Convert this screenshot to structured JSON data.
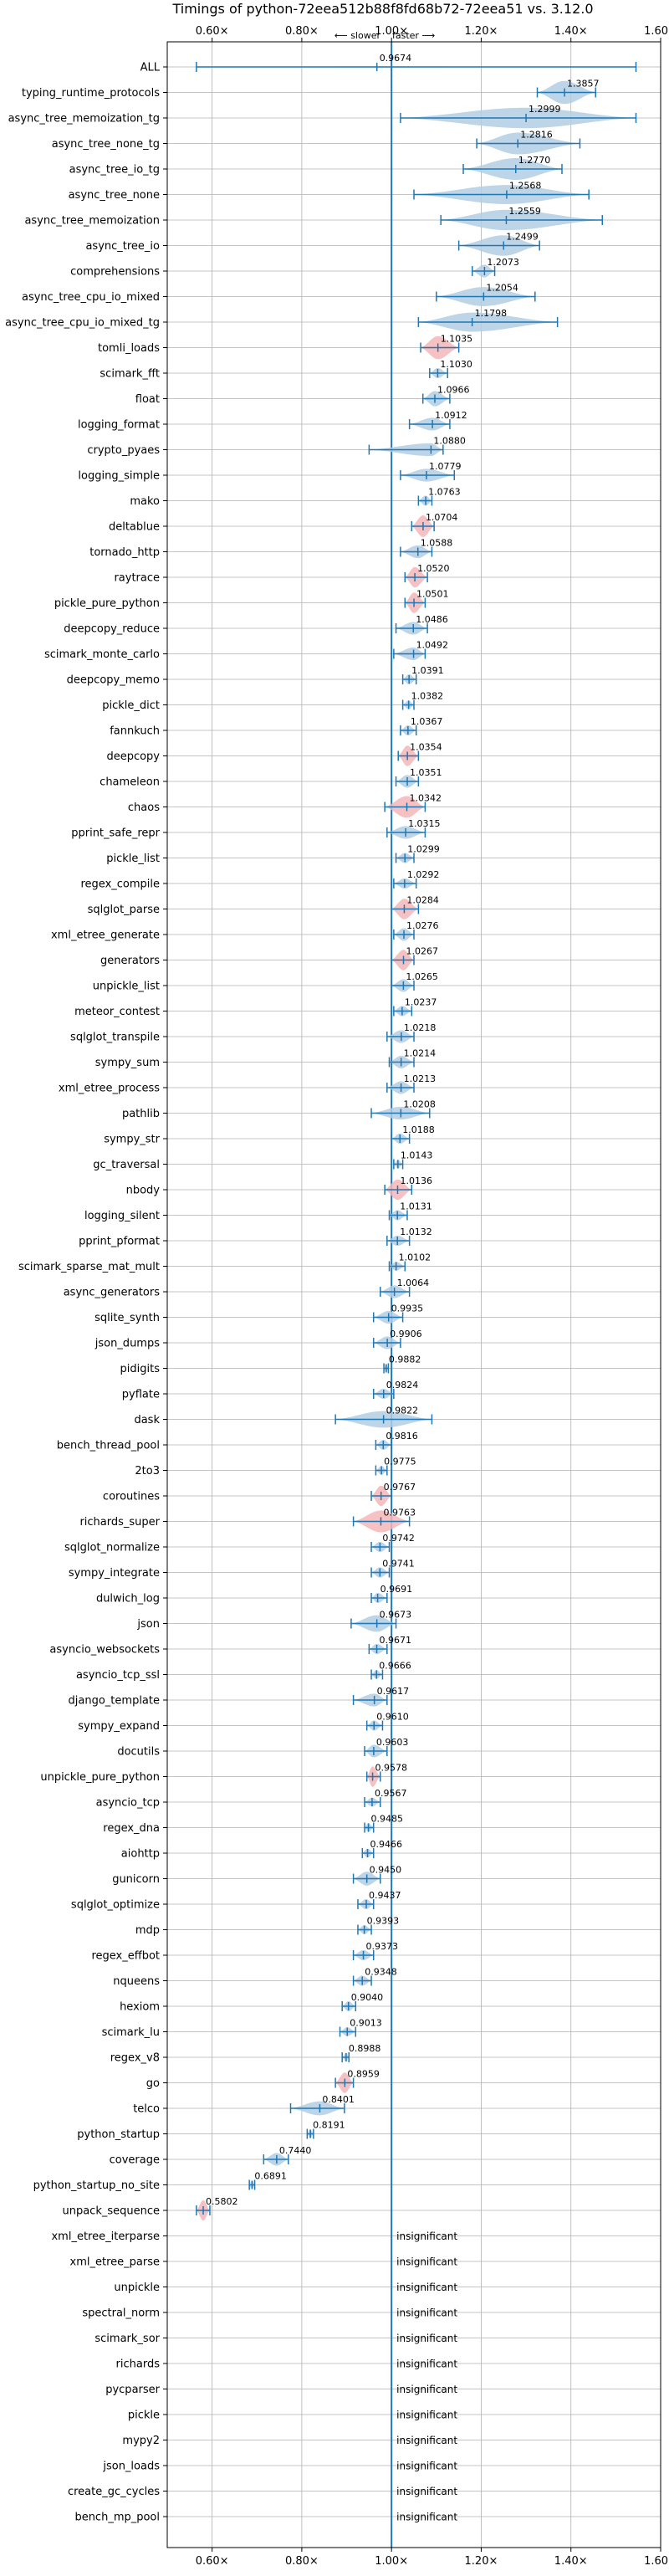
{
  "chart_data": {
    "type": "violin",
    "title": "Timings of python-72eea512b88f8fd68b72-72eea51 vs. 3.12.0",
    "direction_labels": {
      "slower": "⟵ slower",
      "faster": "faster ⟶"
    },
    "xlim": [
      0.5,
      1.6
    ],
    "x_ticks": [
      0.6,
      0.8,
      1.0,
      1.2,
      1.4,
      1.6
    ],
    "x_tick_labels": [
      "0.60×",
      "0.80×",
      "1.00×",
      "1.20×",
      "1.40×",
      "1.60×"
    ],
    "reference_line": 1.0,
    "grid": true,
    "colors": {
      "violin": "#b3cde3",
      "violin_highlight": "#f4b6b9",
      "line": "#1f77b4"
    },
    "insignificant_label": "insignificant",
    "benchmarks": [
      {
        "name": "ALL",
        "value": 0.9674,
        "label": "0.9674",
        "min": 0.565,
        "max": 1.545,
        "w": 0.045
      },
      {
        "name": "typing_runtime_protocols",
        "value": 1.3857,
        "label": "1.3857",
        "min": 1.325,
        "max": 1.455,
        "w": 0.9
      },
      {
        "name": "async_tree_memoization_tg",
        "value": 1.2999,
        "label": "1.2999",
        "min": 1.02,
        "max": 1.545,
        "w": 0.8
      },
      {
        "name": "async_tree_none_tg",
        "value": 1.2816,
        "label": "1.2816",
        "min": 1.19,
        "max": 1.42,
        "w": 0.85
      },
      {
        "name": "async_tree_io_tg",
        "value": 1.277,
        "label": "1.2770",
        "min": 1.16,
        "max": 1.38,
        "w": 0.85
      },
      {
        "name": "async_tree_none",
        "value": 1.2568,
        "label": "1.2568",
        "min": 1.05,
        "max": 1.44,
        "w": 0.75
      },
      {
        "name": "async_tree_memoization",
        "value": 1.2559,
        "label": "1.2559",
        "min": 1.11,
        "max": 1.47,
        "w": 0.8
      },
      {
        "name": "async_tree_io",
        "value": 1.2499,
        "label": "1.2499",
        "min": 1.15,
        "max": 1.33,
        "w": 0.8
      },
      {
        "name": "comprehensions",
        "value": 1.2073,
        "label": "1.2073",
        "min": 1.18,
        "max": 1.23,
        "w": 0.5
      },
      {
        "name": "async_tree_cpu_io_mixed",
        "value": 1.2054,
        "label": "1.2054",
        "min": 1.1,
        "max": 1.32,
        "w": 0.75
      },
      {
        "name": "async_tree_cpu_io_mixed_tg",
        "value": 1.1798,
        "label": "1.1798",
        "min": 1.06,
        "max": 1.37,
        "w": 0.75
      },
      {
        "name": "tomli_loads",
        "value": 1.1035,
        "label": "1.1035",
        "min": 1.065,
        "max": 1.15,
        "w": 0.9,
        "highlight": true
      },
      {
        "name": "scimark_fft",
        "value": 1.103,
        "label": "1.1030",
        "min": 1.085,
        "max": 1.125,
        "w": 0.4
      },
      {
        "name": "float",
        "value": 1.0966,
        "label": "1.0966",
        "min": 1.07,
        "max": 1.13,
        "w": 0.6
      },
      {
        "name": "logging_format",
        "value": 1.0912,
        "label": "1.0912",
        "min": 1.04,
        "max": 1.13,
        "w": 0.5
      },
      {
        "name": "crypto_pyaes",
        "value": 1.088,
        "label": "1.0880",
        "min": 0.95,
        "max": 1.115,
        "w": 0.5
      },
      {
        "name": "logging_simple",
        "value": 1.0779,
        "label": "1.0779",
        "min": 1.02,
        "max": 1.14,
        "w": 0.5
      },
      {
        "name": "mako",
        "value": 1.0763,
        "label": "1.0763",
        "min": 1.06,
        "max": 1.09,
        "w": 0.4
      },
      {
        "name": "deltablue",
        "value": 1.0704,
        "label": "1.0704",
        "min": 1.045,
        "max": 1.095,
        "w": 0.85,
        "highlight": true
      },
      {
        "name": "tornado_http",
        "value": 1.0588,
        "label": "1.0588",
        "min": 1.02,
        "max": 1.09,
        "w": 0.5
      },
      {
        "name": "raytrace",
        "value": 1.052,
        "label": "1.0520",
        "min": 1.03,
        "max": 1.08,
        "w": 0.8,
        "highlight": true
      },
      {
        "name": "pickle_pure_python",
        "value": 1.0501,
        "label": "1.0501",
        "min": 1.03,
        "max": 1.075,
        "w": 0.8,
        "highlight": true
      },
      {
        "name": "deepcopy_reduce",
        "value": 1.0486,
        "label": "1.0486",
        "min": 1.01,
        "max": 1.08,
        "w": 0.5
      },
      {
        "name": "scimark_monte_carlo",
        "value": 1.0492,
        "label": "1.0492",
        "min": 1.005,
        "max": 1.075,
        "w": 0.5
      },
      {
        "name": "deepcopy_memo",
        "value": 1.0391,
        "label": "1.0391",
        "min": 1.025,
        "max": 1.055,
        "w": 0.4
      },
      {
        "name": "pickle_dict",
        "value": 1.0382,
        "label": "1.0382",
        "min": 1.025,
        "max": 1.05,
        "w": 0.35
      },
      {
        "name": "fannkuch",
        "value": 1.0367,
        "label": "1.0367",
        "min": 1.02,
        "max": 1.055,
        "w": 0.4
      },
      {
        "name": "deepcopy",
        "value": 1.0354,
        "label": "1.0354",
        "min": 1.015,
        "max": 1.06,
        "w": 0.8,
        "highlight": true
      },
      {
        "name": "chameleon",
        "value": 1.0351,
        "label": "1.0351",
        "min": 1.01,
        "max": 1.06,
        "w": 0.5
      },
      {
        "name": "chaos",
        "value": 1.0342,
        "label": "1.0342",
        "min": 0.985,
        "max": 1.075,
        "w": 0.85,
        "highlight": true
      },
      {
        "name": "pprint_safe_repr",
        "value": 1.0315,
        "label": "1.0315",
        "min": 0.99,
        "max": 1.075,
        "w": 0.5
      },
      {
        "name": "pickle_list",
        "value": 1.0299,
        "label": "1.0299",
        "min": 1.01,
        "max": 1.05,
        "w": 0.4
      },
      {
        "name": "regex_compile",
        "value": 1.0292,
        "label": "1.0292",
        "min": 1.005,
        "max": 1.055,
        "w": 0.4
      },
      {
        "name": "sqlglot_parse",
        "value": 1.0284,
        "label": "1.0284",
        "min": 1.0,
        "max": 1.06,
        "w": 0.8,
        "highlight": true
      },
      {
        "name": "xml_etree_generate",
        "value": 1.0276,
        "label": "1.0276",
        "min": 1.005,
        "max": 1.05,
        "w": 0.5
      },
      {
        "name": "generators",
        "value": 1.0267,
        "label": "1.0267",
        "min": 1.0,
        "max": 1.05,
        "w": 0.8,
        "highlight": true
      },
      {
        "name": "unpickle_list",
        "value": 1.0265,
        "label": "1.0265",
        "min": 1.0,
        "max": 1.05,
        "w": 0.5
      },
      {
        "name": "meteor_contest",
        "value": 1.0237,
        "label": "1.0237",
        "min": 1.005,
        "max": 1.045,
        "w": 0.4
      },
      {
        "name": "sqlglot_transpile",
        "value": 1.0218,
        "label": "1.0218",
        "min": 0.99,
        "max": 1.05,
        "w": 0.5
      },
      {
        "name": "sympy_sum",
        "value": 1.0214,
        "label": "1.0214",
        "min": 0.995,
        "max": 1.05,
        "w": 0.5
      },
      {
        "name": "xml_etree_process",
        "value": 1.0213,
        "label": "1.0213",
        "min": 0.99,
        "max": 1.05,
        "w": 0.5
      },
      {
        "name": "pathlib",
        "value": 1.0208,
        "label": "1.0208",
        "min": 0.955,
        "max": 1.085,
        "w": 0.5
      },
      {
        "name": "sympy_str",
        "value": 1.0188,
        "label": "1.0188",
        "min": 1.0,
        "max": 1.04,
        "w": 0.4
      },
      {
        "name": "gc_traversal",
        "value": 1.0143,
        "label": "1.0143",
        "min": 1.005,
        "max": 1.025,
        "w": 0.35
      },
      {
        "name": "nbody",
        "value": 1.0136,
        "label": "1.0136",
        "min": 0.985,
        "max": 1.045,
        "w": 0.8,
        "highlight": true
      },
      {
        "name": "logging_silent",
        "value": 1.0131,
        "label": "1.0131",
        "min": 0.995,
        "max": 1.035,
        "w": 0.4
      },
      {
        "name": "pprint_pformat",
        "value": 1.0132,
        "label": "1.0132",
        "min": 0.99,
        "max": 1.04,
        "w": 0.4
      },
      {
        "name": "scimark_sparse_mat_mult",
        "value": 1.0102,
        "label": "1.0102",
        "min": 0.995,
        "max": 1.03,
        "w": 0.35
      },
      {
        "name": "async_generators",
        "value": 1.0064,
        "label": "1.0064",
        "min": 0.975,
        "max": 1.04,
        "w": 0.5
      },
      {
        "name": "sqlite_synth",
        "value": 0.9935,
        "label": "0.9935",
        "min": 0.96,
        "max": 1.025,
        "w": 0.5
      },
      {
        "name": "json_dumps",
        "value": 0.9906,
        "label": "0.9906",
        "min": 0.96,
        "max": 1.02,
        "w": 0.5
      },
      {
        "name": "pidigits",
        "value": 0.9882,
        "label": "0.9882",
        "min": 0.983,
        "max": 0.993,
        "w": 0.35
      },
      {
        "name": "pyflate",
        "value": 0.9824,
        "label": "0.9824",
        "min": 0.96,
        "max": 1.005,
        "w": 0.4
      },
      {
        "name": "dask",
        "value": 0.9822,
        "label": "0.9822",
        "min": 0.875,
        "max": 1.09,
        "w": 0.65
      },
      {
        "name": "bench_thread_pool",
        "value": 0.9816,
        "label": "0.9816",
        "min": 0.965,
        "max": 1.0,
        "w": 0.4
      },
      {
        "name": "2to3",
        "value": 0.9775,
        "label": "0.9775",
        "min": 0.965,
        "max": 0.99,
        "w": 0.35
      },
      {
        "name": "coroutines",
        "value": 0.9767,
        "label": "0.9767",
        "min": 0.955,
        "max": 1.0,
        "w": 0.8,
        "highlight": true
      },
      {
        "name": "richards_super",
        "value": 0.9763,
        "label": "0.9763",
        "min": 0.915,
        "max": 1.04,
        "w": 0.85,
        "highlight": true
      },
      {
        "name": "sqlglot_normalize",
        "value": 0.9742,
        "label": "0.9742",
        "min": 0.955,
        "max": 0.995,
        "w": 0.4
      },
      {
        "name": "sympy_integrate",
        "value": 0.9741,
        "label": "0.9741",
        "min": 0.955,
        "max": 0.995,
        "w": 0.4
      },
      {
        "name": "dulwich_log",
        "value": 0.9691,
        "label": "0.9691",
        "min": 0.955,
        "max": 0.99,
        "w": 0.4
      },
      {
        "name": "json",
        "value": 0.9673,
        "label": "0.9673",
        "min": 0.91,
        "max": 1.01,
        "w": 0.65
      },
      {
        "name": "asyncio_websockets",
        "value": 0.9671,
        "label": "0.9671",
        "min": 0.95,
        "max": 0.99,
        "w": 0.4
      },
      {
        "name": "asyncio_tcp_ssl",
        "value": 0.9666,
        "label": "0.9666",
        "min": 0.955,
        "max": 0.98,
        "w": 0.35
      },
      {
        "name": "django_template",
        "value": 0.9617,
        "label": "0.9617",
        "min": 0.915,
        "max": 0.99,
        "w": 0.5
      },
      {
        "name": "sympy_expand",
        "value": 0.961,
        "label": "0.9610",
        "min": 0.945,
        "max": 0.98,
        "w": 0.4
      },
      {
        "name": "docutils",
        "value": 0.9603,
        "label": "0.9603",
        "min": 0.94,
        "max": 0.99,
        "w": 0.5
      },
      {
        "name": "unpickle_pure_python",
        "value": 0.9578,
        "label": "0.9578",
        "min": 0.945,
        "max": 0.975,
        "w": 0.8,
        "highlight": true
      },
      {
        "name": "asyncio_tcp",
        "value": 0.9567,
        "label": "0.9567",
        "min": 0.94,
        "max": 0.975,
        "w": 0.35
      },
      {
        "name": "regex_dna",
        "value": 0.9485,
        "label": "0.9485",
        "min": 0.94,
        "max": 0.96,
        "w": 0.35
      },
      {
        "name": "aiohttp",
        "value": 0.9466,
        "label": "0.9466",
        "min": 0.935,
        "max": 0.96,
        "w": 0.35
      },
      {
        "name": "gunicorn",
        "value": 0.945,
        "label": "0.9450",
        "min": 0.915,
        "max": 0.975,
        "w": 0.55
      },
      {
        "name": "sqlglot_optimize",
        "value": 0.9437,
        "label": "0.9437",
        "min": 0.925,
        "max": 0.96,
        "w": 0.4
      },
      {
        "name": "mdp",
        "value": 0.9393,
        "label": "0.9393",
        "min": 0.925,
        "max": 0.955,
        "w": 0.35
      },
      {
        "name": "regex_effbot",
        "value": 0.9373,
        "label": "0.9373",
        "min": 0.915,
        "max": 0.96,
        "w": 0.4
      },
      {
        "name": "nqueens",
        "value": 0.9348,
        "label": "0.9348",
        "min": 0.915,
        "max": 0.955,
        "w": 0.4
      },
      {
        "name": "hexiom",
        "value": 0.904,
        "label": "0.9040",
        "min": 0.89,
        "max": 0.92,
        "w": 0.4
      },
      {
        "name": "scimark_lu",
        "value": 0.9013,
        "label": "0.9013",
        "min": 0.885,
        "max": 0.92,
        "w": 0.35
      },
      {
        "name": "regex_v8",
        "value": 0.8988,
        "label": "0.8988",
        "min": 0.89,
        "max": 0.905,
        "w": 0.35
      },
      {
        "name": "go",
        "value": 0.8959,
        "label": "0.8959",
        "min": 0.875,
        "max": 0.915,
        "w": 0.8,
        "highlight": true
      },
      {
        "name": "telco",
        "value": 0.8401,
        "label": "0.8401",
        "min": 0.775,
        "max": 0.895,
        "w": 0.55
      },
      {
        "name": "python_startup",
        "value": 0.8191,
        "label": "0.8191",
        "min": 0.812,
        "max": 0.826,
        "w": 0.35
      },
      {
        "name": "coverage",
        "value": 0.744,
        "label": "0.7440",
        "min": 0.715,
        "max": 0.77,
        "w": 0.5
      },
      {
        "name": "python_startup_no_site",
        "value": 0.6891,
        "label": "0.6891",
        "min": 0.683,
        "max": 0.695,
        "w": 0.35
      },
      {
        "name": "unpack_sequence",
        "value": 0.5802,
        "label": "0.5802",
        "min": 0.565,
        "max": 0.595,
        "w": 0.8,
        "highlight": true
      },
      {
        "name": "xml_etree_iterparse",
        "insignificant": true
      },
      {
        "name": "xml_etree_parse",
        "insignificant": true
      },
      {
        "name": "unpickle",
        "insignificant": true
      },
      {
        "name": "spectral_norm",
        "insignificant": true
      },
      {
        "name": "scimark_sor",
        "insignificant": true
      },
      {
        "name": "richards",
        "insignificant": true
      },
      {
        "name": "pycparser",
        "insignificant": true
      },
      {
        "name": "pickle",
        "insignificant": true
      },
      {
        "name": "mypy2",
        "insignificant": true
      },
      {
        "name": "json_loads",
        "insignificant": true
      },
      {
        "name": "create_gc_cycles",
        "insignificant": true
      },
      {
        "name": "bench_mp_pool",
        "insignificant": true
      }
    ]
  }
}
